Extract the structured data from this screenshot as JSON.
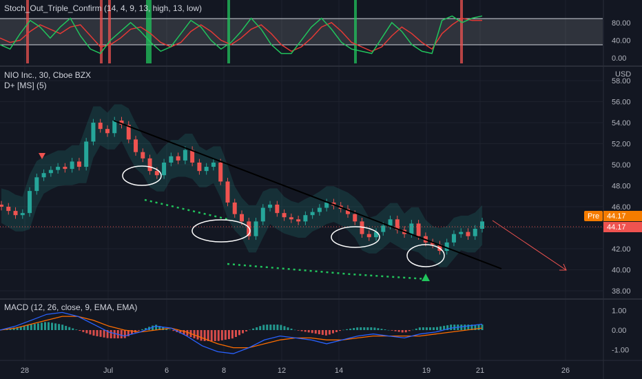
{
  "colors": {
    "background": "#131722",
    "grid": "#1e222d",
    "up": "#26a69a",
    "down": "#ef5350",
    "stoch_k": "#21c45c",
    "stoch_d": "#e53935",
    "macd_line": "#2962ff",
    "signal_line": "#ff6d00",
    "trendline": "#000000",
    "price_tag": "#f57c00",
    "price_tag_red": "#ef5350"
  },
  "chart_data": [
    {
      "type": "line",
      "pane": "stochastic",
      "title": "Stoch_Out_Triple_Confirm (14, 4, 9, 13, high, 13, low)",
      "ylim": [
        0,
        100
      ],
      "y_ticks": [
        "80.00",
        "40.00",
        "0.00"
      ],
      "y_tick_values": [
        80,
        40,
        0
      ],
      "levels": [
        75,
        25
      ],
      "series": [
        {
          "values": [
            30,
            20,
            55,
            85,
            70,
            45,
            70,
            90,
            50,
            20,
            10,
            40,
            60,
            80,
            60,
            35,
            15,
            25,
            55,
            85,
            70,
            40,
            20,
            35,
            60,
            90,
            65,
            30,
            10,
            10,
            40,
            70,
            90,
            65,
            35,
            20,
            15,
            10,
            45,
            80,
            60,
            30,
            15,
            10,
            85,
            95,
            80,
            90,
            95
          ]
        },
        {
          "values": [
            45,
            35,
            40,
            60,
            75,
            65,
            55,
            70,
            75,
            50,
            25,
            30,
            45,
            65,
            70,
            55,
            35,
            25,
            35,
            60,
            75,
            60,
            40,
            30,
            45,
            65,
            75,
            55,
            30,
            15,
            25,
            45,
            70,
            80,
            60,
            35,
            25,
            15,
            25,
            50,
            70,
            55,
            35,
            20,
            55,
            75,
            90,
            85,
            85
          ]
        }
      ]
    },
    {
      "type": "candlestick",
      "pane": "price",
      "title": "NIO Inc., 30, Cboe BZX",
      "subtitle": "D+ [MS] (5)",
      "currency": "USD",
      "ylim": [
        37,
        59
      ],
      "y_ticks": [
        "58.00",
        "56.00",
        "54.00",
        "52.00",
        "50.00",
        "48.00",
        "46.00",
        "44.00",
        "42.00",
        "40.00",
        "38.00"
      ],
      "y_tick_values": [
        58,
        56,
        54,
        52,
        50,
        48,
        46,
        44,
        42,
        40,
        38
      ],
      "x_ticks": [
        "28",
        "Jul",
        "6",
        "8",
        "12",
        "14",
        "19",
        "21",
        "26"
      ],
      "close": [
        46.0,
        45.6,
        45.2,
        45.4,
        47.5,
        48.8,
        49.2,
        49.5,
        49.8,
        49.6,
        50.3,
        49.8,
        52.2,
        54.0,
        53.4,
        53.0,
        54.2,
        53.8,
        52.4,
        51.2,
        50.6,
        49.4,
        49.0,
        50.2,
        50.8,
        50.4,
        51.4,
        50.2,
        49.4,
        49.8,
        50.2,
        48.4,
        46.4,
        45.3,
        44.6,
        43.2,
        44.6,
        45.9,
        46.2,
        45.4,
        45.0,
        44.8,
        44.6,
        45.2,
        45.5,
        45.9,
        46.4,
        46.1,
        45.8,
        45.3,
        44.6,
        43.4,
        43.1,
        43.6,
        44.2,
        44.8,
        43.8,
        43.4,
        44.4,
        43.2,
        42.6,
        42.4,
        41.8,
        42.6,
        43.4,
        43.6,
        43.2,
        43.9,
        44.6
      ],
      "current_price": "44.17",
      "pre_label": "Pre",
      "pre_price": "44.17"
    },
    {
      "type": "line",
      "pane": "macd",
      "title": "MACD (12, 26, close, 9, EMA, EMA)",
      "ylim": [
        -1.3,
        1.3
      ],
      "y_ticks": [
        "1.00",
        "0.00",
        "-1.00"
      ],
      "y_tick_values": [
        1,
        0,
        -1
      ],
      "series": [
        {
          "values": [
            0.0,
            0.2,
            0.5,
            0.8,
            0.9,
            0.7,
            0.3,
            -0.1,
            -0.3,
            -0.1,
            0.2,
            0.1,
            -0.3,
            -0.8,
            -1.1,
            -1.2,
            -0.9,
            -0.5,
            -0.3,
            -0.4,
            -0.5,
            -0.7,
            -0.5,
            -0.3,
            -0.2,
            -0.3,
            -0.4,
            -0.2,
            -0.1,
            0.1,
            0.2,
            0.3
          ]
        },
        {
          "values": [
            0.0,
            0.1,
            0.3,
            0.5,
            0.7,
            0.7,
            0.5,
            0.2,
            0.0,
            -0.1,
            0.0,
            0.1,
            -0.1,
            -0.4,
            -0.7,
            -0.9,
            -0.9,
            -0.7,
            -0.5,
            -0.4,
            -0.4,
            -0.5,
            -0.5,
            -0.4,
            -0.3,
            -0.3,
            -0.3,
            -0.3,
            -0.2,
            -0.1,
            0.0,
            0.1
          ]
        }
      ]
    }
  ]
}
